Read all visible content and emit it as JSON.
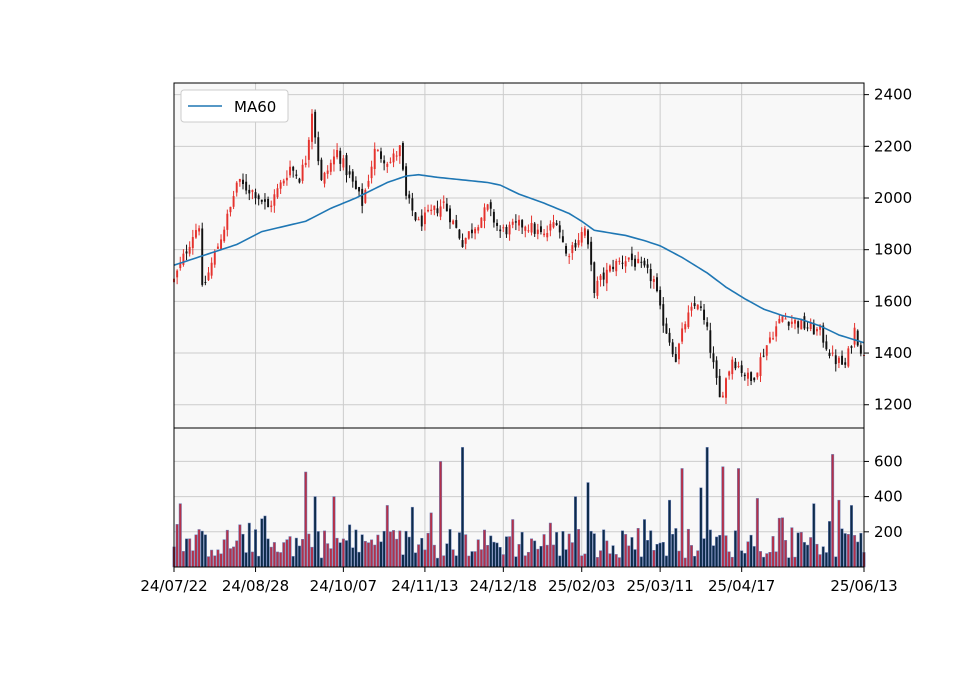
{
  "chart_data": {
    "type": "candlestick",
    "price_axis": {
      "ylim": [
        1110,
        2445
      ],
      "ticks": [
        1200,
        1400,
        1600,
        1800,
        2000,
        2200,
        2400
      ],
      "side": "right"
    },
    "volume_axis": {
      "ylim": [
        0,
        790
      ],
      "ticks": [
        200,
        400,
        600
      ],
      "side": "right"
    },
    "x_tick_labels": [
      "24/07/22",
      "24/08/28",
      "24/10/07",
      "24/11/13",
      "24/12/18",
      "25/02/03",
      "25/03/11",
      "25/04/17",
      "25/06/13"
    ],
    "x_tick_index": [
      0,
      26,
      54,
      80,
      105,
      130,
      155,
      181,
      220
    ],
    "num_sessions": 221,
    "grid": true,
    "legend": {
      "position": "top-left",
      "entries": [
        {
          "label": "MA60",
          "color": "#1f77b4"
        }
      ]
    },
    "colors": {
      "up": "#e5322d",
      "down": "#111111",
      "ma": "#1f77b4",
      "vol_up": "#b5304a",
      "vol_down": "#0d2b4a",
      "plot_bg": "#f8f8f8",
      "grid": "#cccccc"
    },
    "price_anchors": [
      {
        "i": 0,
        "c": 1680
      },
      {
        "i": 6,
        "c": 1860
      },
      {
        "i": 8,
        "c": 1900
      },
      {
        "i": 9,
        "c": 1640
      },
      {
        "i": 13,
        "c": 1780
      },
      {
        "i": 18,
        "c": 1960
      },
      {
        "i": 20,
        "c": 2060
      },
      {
        "i": 26,
        "c": 2020
      },
      {
        "i": 30,
        "c": 1960
      },
      {
        "i": 37,
        "c": 2120
      },
      {
        "i": 40,
        "c": 2080
      },
      {
        "i": 42,
        "c": 2150
      },
      {
        "i": 44,
        "c": 2340
      },
      {
        "i": 47,
        "c": 2060
      },
      {
        "i": 52,
        "c": 2180
      },
      {
        "i": 60,
        "c": 1980
      },
      {
        "i": 64,
        "c": 2180
      },
      {
        "i": 69,
        "c": 2140
      },
      {
        "i": 72,
        "c": 2190
      },
      {
        "i": 74,
        "c": 2000
      },
      {
        "i": 78,
        "c": 1900
      },
      {
        "i": 86,
        "c": 1980
      },
      {
        "i": 92,
        "c": 1830
      },
      {
        "i": 100,
        "c": 1960
      },
      {
        "i": 104,
        "c": 1870
      },
      {
        "i": 112,
        "c": 1900
      },
      {
        "i": 118,
        "c": 1850
      },
      {
        "i": 122,
        "c": 1920
      },
      {
        "i": 125,
        "c": 1780
      },
      {
        "i": 131,
        "c": 1880
      },
      {
        "i": 134,
        "c": 1650
      },
      {
        "i": 140,
        "c": 1740
      },
      {
        "i": 145,
        "c": 1770
      },
      {
        "i": 150,
        "c": 1720
      },
      {
        "i": 153,
        "c": 1680
      },
      {
        "i": 155,
        "c": 1560
      },
      {
        "i": 160,
        "c": 1380
      },
      {
        "i": 163,
        "c": 1520
      },
      {
        "i": 167,
        "c": 1600
      },
      {
        "i": 170,
        "c": 1480
      },
      {
        "i": 174,
        "c": 1220
      },
      {
        "i": 178,
        "c": 1380
      },
      {
        "i": 184,
        "c": 1290
      },
      {
        "i": 190,
        "c": 1460
      },
      {
        "i": 194,
        "c": 1540
      },
      {
        "i": 200,
        "c": 1510
      },
      {
        "i": 206,
        "c": 1480
      },
      {
        "i": 210,
        "c": 1380
      },
      {
        "i": 214,
        "c": 1350
      },
      {
        "i": 217,
        "c": 1490
      },
      {
        "i": 220,
        "c": 1380
      }
    ],
    "ma60_anchors": [
      {
        "i": 0,
        "v": 1740
      },
      {
        "i": 10,
        "v": 1780
      },
      {
        "i": 20,
        "v": 1820
      },
      {
        "i": 28,
        "v": 1870
      },
      {
        "i": 42,
        "v": 1910
      },
      {
        "i": 50,
        "v": 1960
      },
      {
        "i": 58,
        "v": 2000
      },
      {
        "i": 68,
        "v": 2060
      },
      {
        "i": 74,
        "v": 2085
      },
      {
        "i": 78,
        "v": 2090
      },
      {
        "i": 84,
        "v": 2080
      },
      {
        "i": 92,
        "v": 2070
      },
      {
        "i": 100,
        "v": 2060
      },
      {
        "i": 104,
        "v": 2050
      },
      {
        "i": 110,
        "v": 2015
      },
      {
        "i": 118,
        "v": 1980
      },
      {
        "i": 126,
        "v": 1940
      },
      {
        "i": 130,
        "v": 1910
      },
      {
        "i": 134,
        "v": 1875
      },
      {
        "i": 144,
        "v": 1855
      },
      {
        "i": 150,
        "v": 1835
      },
      {
        "i": 155,
        "v": 1815
      },
      {
        "i": 162,
        "v": 1770
      },
      {
        "i": 170,
        "v": 1710
      },
      {
        "i": 176,
        "v": 1655
      },
      {
        "i": 182,
        "v": 1610
      },
      {
        "i": 188,
        "v": 1570
      },
      {
        "i": 194,
        "v": 1545
      },
      {
        "i": 200,
        "v": 1530
      },
      {
        "i": 206,
        "v": 1505
      },
      {
        "i": 212,
        "v": 1470
      },
      {
        "i": 220,
        "v": 1440
      }
    ],
    "volume_peaks": [
      {
        "i": 2,
        "v": 360
      },
      {
        "i": 21,
        "v": 240
      },
      {
        "i": 29,
        "v": 290
      },
      {
        "i": 42,
        "v": 540
      },
      {
        "i": 45,
        "v": 400
      },
      {
        "i": 51,
        "v": 400
      },
      {
        "i": 68,
        "v": 350
      },
      {
        "i": 76,
        "v": 340
      },
      {
        "i": 85,
        "v": 600
      },
      {
        "i": 92,
        "v": 680
      },
      {
        "i": 108,
        "v": 270
      },
      {
        "i": 120,
        "v": 250
      },
      {
        "i": 128,
        "v": 400
      },
      {
        "i": 132,
        "v": 480
      },
      {
        "i": 148,
        "v": 220
      },
      {
        "i": 150,
        "v": 270
      },
      {
        "i": 158,
        "v": 380
      },
      {
        "i": 162,
        "v": 560
      },
      {
        "i": 168,
        "v": 450
      },
      {
        "i": 170,
        "v": 680
      },
      {
        "i": 175,
        "v": 570
      },
      {
        "i": 180,
        "v": 560
      },
      {
        "i": 186,
        "v": 390
      },
      {
        "i": 194,
        "v": 280
      },
      {
        "i": 204,
        "v": 360
      },
      {
        "i": 210,
        "v": 640
      },
      {
        "i": 212,
        "v": 380
      },
      {
        "i": 216,
        "v": 350
      }
    ]
  }
}
